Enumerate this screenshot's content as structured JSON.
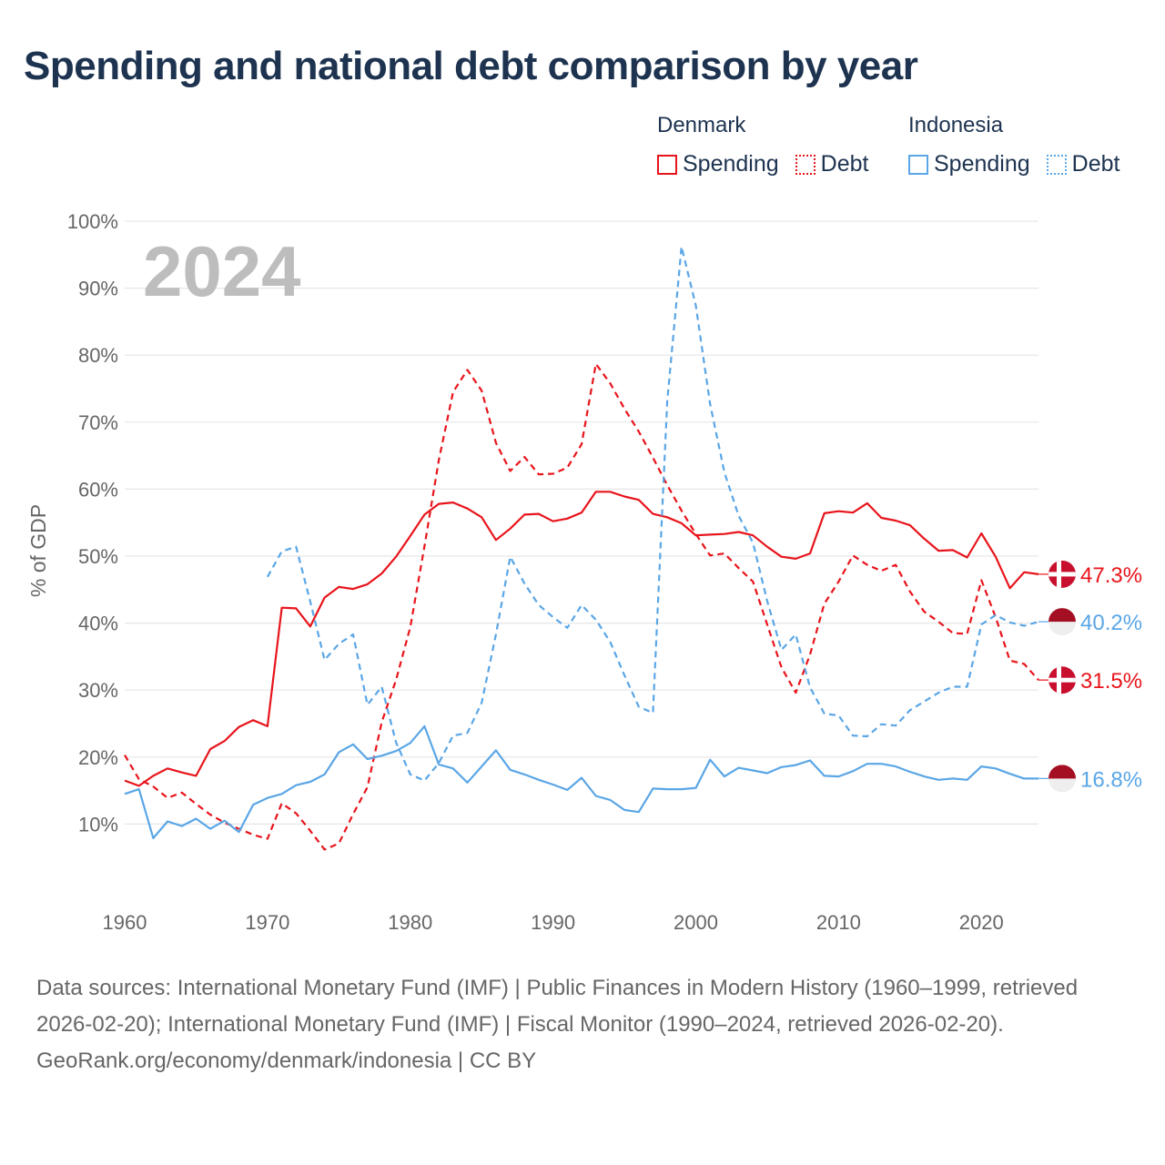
{
  "title": "Spending and national debt comparison by year",
  "legend": {
    "groups": [
      {
        "name": "Denmark",
        "items": [
          {
            "label": "Spending"
          },
          {
            "label": "Debt"
          }
        ]
      },
      {
        "name": "Indonesia",
        "items": [
          {
            "label": "Spending"
          },
          {
            "label": "Debt"
          }
        ]
      }
    ]
  },
  "footer": {
    "sources": "Data sources: International Monetary Fund (IMF) | Public Finances in Modern History (1960–1999, retrieved 2026-02-20); International Monetary Fund (IMF) | Fiscal Monitor (1990–2024, retrieved 2026-02-20).",
    "credit": "GeoRank.org/economy/denmark/indonesia | CC BY"
  },
  "colors": {
    "denmark": "#e8141b",
    "indonesia": "#5aa6e6",
    "grid": "#e6e6e6",
    "text": "#666666",
    "title": "#1d3350",
    "year": "#bdbdbd"
  },
  "chart_data": {
    "type": "line",
    "title": "Spending and national debt comparison by year",
    "ylabel": "% of GDP",
    "xlabel": "",
    "year_label": "2024",
    "xlim": [
      1960,
      2024
    ],
    "ylim": [
      0,
      100
    ],
    "x_ticks": [
      1960,
      1970,
      1980,
      1990,
      2000,
      2010,
      2020
    ],
    "y_ticks": [
      10,
      20,
      30,
      40,
      50,
      60,
      70,
      80,
      90,
      100
    ],
    "y_tick_labels": [
      "10%",
      "20%",
      "30%",
      "40%",
      "50%",
      "60%",
      "70%",
      "80%",
      "90%",
      "100%"
    ],
    "series": [
      {
        "name": "Denmark Spending",
        "country": "Denmark",
        "metric": "Spending",
        "style": "solid",
        "color": "#e8141b",
        "start_year": 1960,
        "end_label": "47.3%",
        "flag": "denmark",
        "values": [
          16.5,
          15.7,
          17.2,
          18.3,
          17.7,
          17.2,
          21.2,
          22.4,
          24.5,
          25.5,
          24.6,
          42.3,
          42.2,
          39.5,
          43.8,
          45.4,
          45.1,
          45.8,
          47.4,
          49.9,
          53.0,
          56.2,
          57.8,
          58.0,
          57.1,
          55.8,
          52.4,
          54.1,
          56.2,
          56.3,
          55.2,
          55.6,
          56.5,
          59.6,
          59.6,
          58.9,
          58.4,
          56.3,
          55.8,
          54.9,
          53.1,
          53.2,
          53.3,
          53.6,
          53.1,
          51.4,
          49.9,
          49.6,
          50.4,
          56.4,
          56.7,
          56.5,
          57.9,
          55.7,
          55.3,
          54.6,
          52.6,
          50.8,
          50.9,
          49.8,
          53.4,
          49.9,
          45.2,
          47.6,
          47.3
        ]
      },
      {
        "name": "Denmark Debt",
        "country": "Denmark",
        "metric": "Debt",
        "style": "dashed",
        "color": "#e8141b",
        "start_year": 1960,
        "end_label": "31.5%",
        "flag": "denmark",
        "values": [
          20.3,
          16.7,
          15.6,
          13.9,
          14.7,
          13.0,
          11.4,
          10.2,
          9.3,
          8.4,
          7.8,
          13.1,
          11.6,
          9.0,
          6.2,
          7.1,
          11.5,
          15.5,
          25.2,
          31.5,
          39.4,
          51.5,
          64.3,
          74.5,
          77.8,
          74.7,
          66.9,
          62.7,
          64.8,
          62.2,
          62.3,
          63.2,
          66.7,
          78.7,
          75.8,
          72.0,
          68.6,
          64.7,
          60.6,
          56.8,
          53.3,
          50.1,
          50.4,
          48.2,
          46.2,
          39.8,
          33.4,
          29.6,
          35.3,
          42.9,
          46.2,
          50.1,
          48.7,
          47.8,
          48.7,
          44.7,
          41.7,
          40.2,
          38.5,
          38.4,
          46.4,
          40.9,
          34.4,
          33.9,
          31.5
        ]
      },
      {
        "name": "Indonesia Spending",
        "country": "Indonesia",
        "metric": "Spending",
        "style": "solid",
        "color": "#5aa6e6",
        "start_year": 1960,
        "end_label": "16.8%",
        "flag": "indonesia",
        "values": [
          14.5,
          15.2,
          7.9,
          10.4,
          9.7,
          10.8,
          9.3,
          10.5,
          8.8,
          12.9,
          13.9,
          14.5,
          15.8,
          16.3,
          17.4,
          20.7,
          21.9,
          19.7,
          20.2,
          20.9,
          22.1,
          24.6,
          18.9,
          18.3,
          16.2,
          18.6,
          21.0,
          18.1,
          17.4,
          16.6,
          15.9,
          15.1,
          16.9,
          14.2,
          13.6,
          12.1,
          11.8,
          15.3,
          15.2,
          15.2,
          15.4,
          19.6,
          17.1,
          18.4,
          18.0,
          17.6,
          18.5,
          18.8,
          19.5,
          17.2,
          17.1,
          17.9,
          19.0,
          19.0,
          18.6,
          17.8,
          17.1,
          16.6,
          16.8,
          16.6,
          18.6,
          18.3,
          17.5,
          16.8,
          16.8
        ]
      },
      {
        "name": "Indonesia Debt",
        "country": "Indonesia",
        "metric": "Debt",
        "style": "dashed",
        "color": "#5aa6e6",
        "start_year": 1970,
        "end_label": "40.2%",
        "flag": "indonesia",
        "values": [
          46.9,
          50.7,
          51.4,
          43.2,
          34.5,
          36.9,
          38.3,
          27.8,
          30.5,
          22.2,
          17.4,
          16.5,
          19.1,
          23.2,
          23.6,
          28.1,
          38.3,
          49.9,
          45.9,
          42.7,
          40.9,
          39.3,
          42.7,
          40.5,
          37.2,
          32.2,
          27.5,
          26.6,
          73.1,
          96.2,
          87.4,
          72.7,
          62.5,
          56.0,
          52.0,
          43.3,
          36.0,
          38.3,
          30.4,
          26.5,
          26.2,
          23.2,
          23.1,
          24.9,
          24.7,
          27.0,
          28.3,
          29.6,
          30.5,
          30.5,
          39.8,
          41.2,
          40.1,
          39.6,
          40.2
        ]
      }
    ]
  }
}
